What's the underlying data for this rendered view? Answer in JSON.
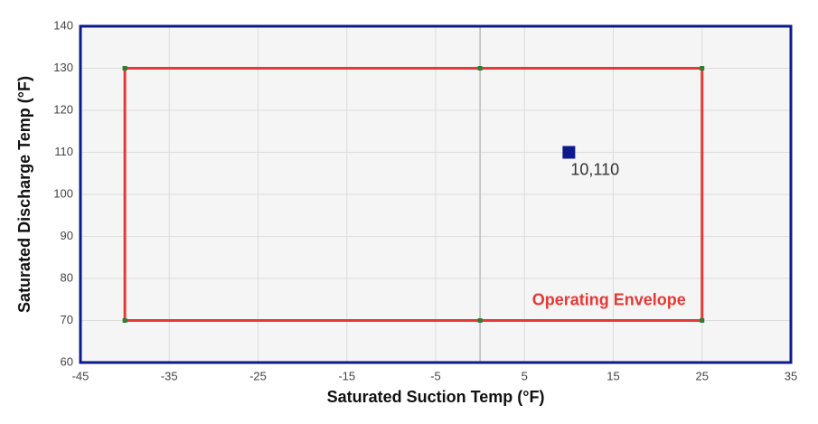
{
  "chart_data": {
    "type": "line",
    "x_label": "Saturated Suction Temp (°F)",
    "y_label": "Saturated Discharge Temp (°F)",
    "xlim": [
      -45,
      35
    ],
    "ylim": [
      60,
      140
    ],
    "xticks": [
      -45,
      -35,
      -25,
      -15,
      -5,
      5,
      15,
      25,
      35
    ],
    "yticks": [
      60,
      70,
      80,
      90,
      100,
      110,
      120,
      130,
      140
    ],
    "grid": true,
    "series": [
      {
        "name": "Operating Envelope",
        "color": "#e53935",
        "marker_color": "#2e7d32",
        "x": [
          -40,
          0,
          25,
          25,
          0,
          -40,
          -40
        ],
        "values": [
          130,
          130,
          130,
          70,
          70,
          70,
          130
        ]
      },
      {
        "color": "#0d1a8c",
        "marker": "square",
        "x": [
          10
        ],
        "values": [
          110
        ],
        "value_labels": [
          "10,110"
        ]
      }
    ]
  }
}
